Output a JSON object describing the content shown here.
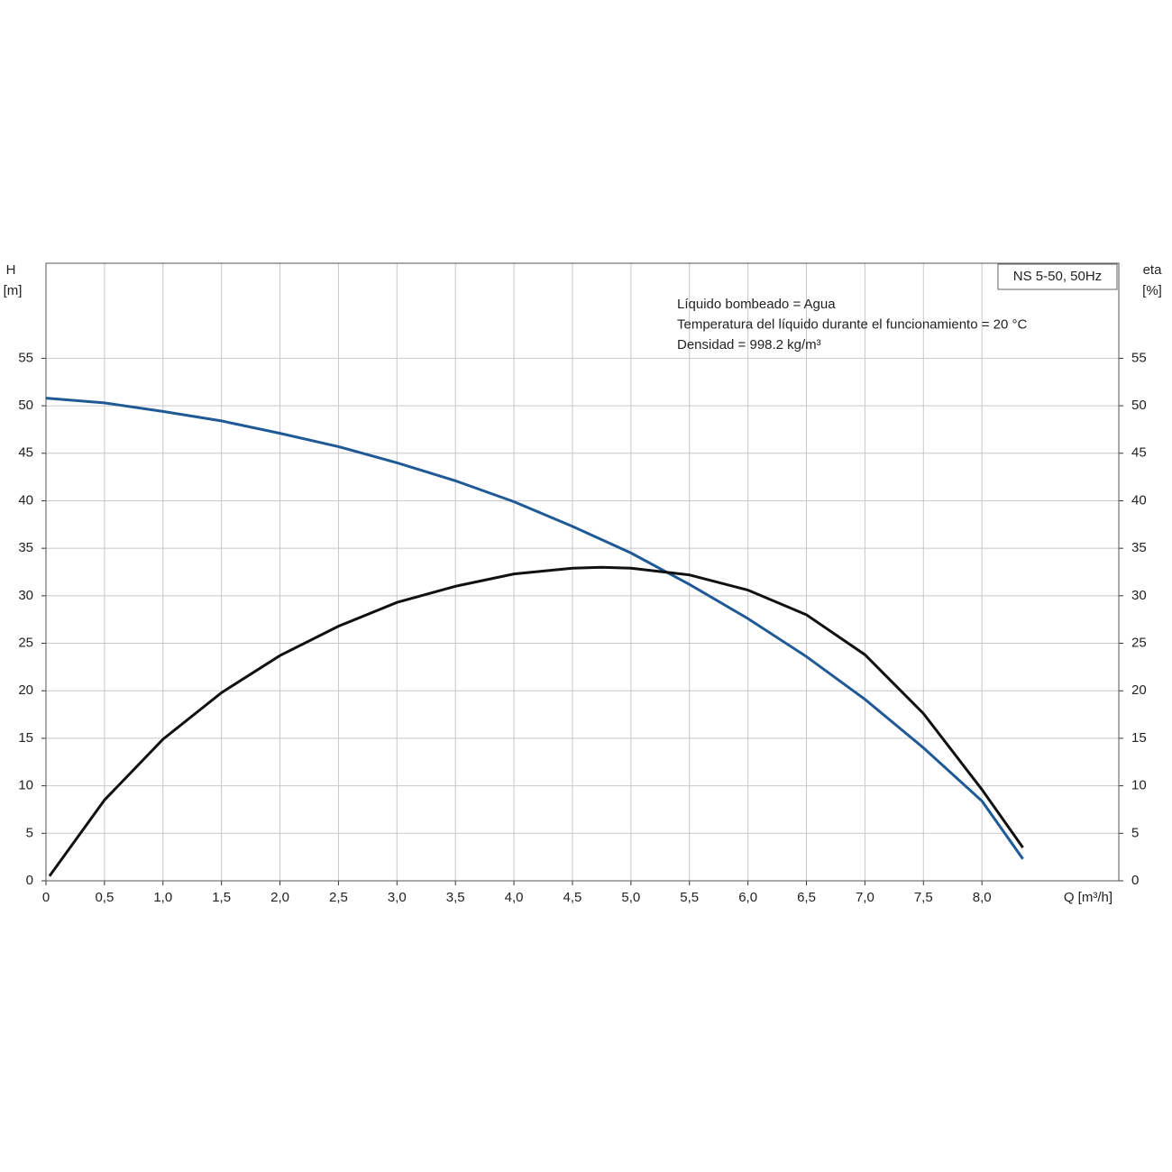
{
  "chart_data": {
    "type": "line",
    "y_label": [
      "H",
      "[m]"
    ],
    "y2_label": [
      "eta",
      "[%]"
    ],
    "x_label": "Q [m³/h]",
    "box_label": "NS 5-50, 50Hz",
    "annotations": [
      "Líquido bombeado = Agua",
      "Temperatura del líquido durante el funcionamiento = 20 °C",
      "Densidad = 998.2 kg/m³"
    ],
    "xlim": [
      0,
      9.17
    ],
    "ylim": [
      0,
      65
    ],
    "y2lim": [
      0,
      65
    ],
    "xticks": [
      0,
      {
        "value": 0.5,
        "label": "0,5"
      },
      {
        "value": 1.0,
        "label": "1,0"
      },
      {
        "value": 1.5,
        "label": "1,5"
      },
      {
        "value": 2.0,
        "label": "2,0"
      },
      {
        "value": 2.5,
        "label": "2,5"
      },
      {
        "value": 3.0,
        "label": "3,0"
      },
      {
        "value": 3.5,
        "label": "3,5"
      },
      {
        "value": 4.0,
        "label": "4,0"
      },
      {
        "value": 4.5,
        "label": "4,5"
      },
      {
        "value": 5.0,
        "label": "5,0"
      },
      {
        "value": 5.5,
        "label": "5,5"
      },
      {
        "value": 6.0,
        "label": "6,0"
      },
      {
        "value": 6.5,
        "label": "6,5"
      },
      {
        "value": 7.0,
        "label": "7,0"
      },
      {
        "value": 7.5,
        "label": "7,5"
      },
      {
        "value": 8.0,
        "label": "8,0"
      }
    ],
    "yticks": [
      0,
      5,
      10,
      15,
      20,
      25,
      30,
      35,
      40,
      45,
      50,
      55
    ],
    "y2ticks": [
      0,
      5,
      10,
      15,
      20,
      25,
      30,
      35,
      40,
      45,
      50,
      55
    ],
    "grid": true,
    "series": [
      {
        "color": "#1f5a96",
        "axis": "y",
        "x": [
          0,
          0.5,
          1.0,
          1.5,
          2.0,
          2.5,
          3.0,
          3.5,
          4.0,
          4.5,
          5.0,
          5.5,
          6.0,
          6.5,
          7.0,
          7.5,
          8.0,
          8.35
        ],
        "values": [
          50.8,
          50.3,
          49.4,
          48.4,
          47.1,
          45.7,
          44.0,
          42.1,
          39.9,
          37.3,
          34.5,
          31.2,
          27.6,
          23.6,
          19.1,
          14.0,
          8.4,
          2.3
        ]
      },
      {
        "color": "#111111",
        "axis": "y2",
        "x": [
          0.03,
          0.5,
          1.0,
          1.5,
          2.0,
          2.5,
          3.0,
          3.5,
          4.0,
          4.5,
          4.75,
          5.0,
          5.5,
          6.0,
          6.5,
          7.0,
          7.5,
          8.0,
          8.35
        ],
        "values": [
          0.5,
          8.5,
          14.9,
          19.8,
          23.7,
          26.8,
          29.3,
          31.0,
          32.3,
          32.9,
          33.0,
          32.9,
          32.2,
          30.6,
          28.0,
          23.8,
          17.6,
          9.6,
          3.5
        ]
      }
    ]
  }
}
